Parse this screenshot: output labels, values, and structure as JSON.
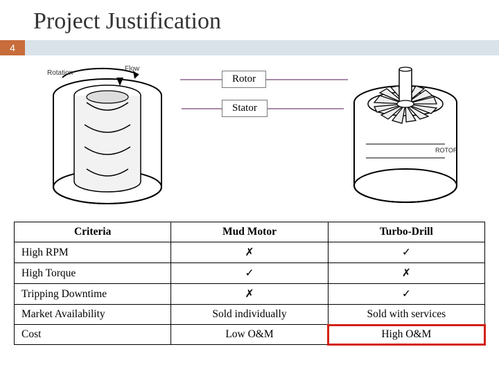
{
  "title": "Project Justification",
  "slide_number": "4",
  "labels": {
    "rotor": "Rotor",
    "stator": "Stator"
  },
  "table": {
    "headers": [
      "Criteria",
      "Mud Motor",
      "Turbo-Drill"
    ],
    "rows": [
      {
        "criteria": "High RPM",
        "mud": "✗",
        "turbo": "✓"
      },
      {
        "criteria": "High Torque",
        "mud": "✓",
        "turbo": "✗"
      },
      {
        "criteria": "Tripping Downtime",
        "mud": "✗",
        "turbo": "✓"
      },
      {
        "criteria": "Market Availability",
        "mud": "Sold individually",
        "turbo": "Sold with services"
      },
      {
        "criteria": "Cost",
        "mud": "Low O&M",
        "turbo": "High O&M"
      }
    ],
    "highlight": {
      "row": 4,
      "col": "turbo"
    }
  },
  "colors": {
    "accent": "#c76c3a",
    "stripe": "#d9e2e9",
    "highlight_border": "#d22015",
    "connector": "#a78aa8"
  }
}
